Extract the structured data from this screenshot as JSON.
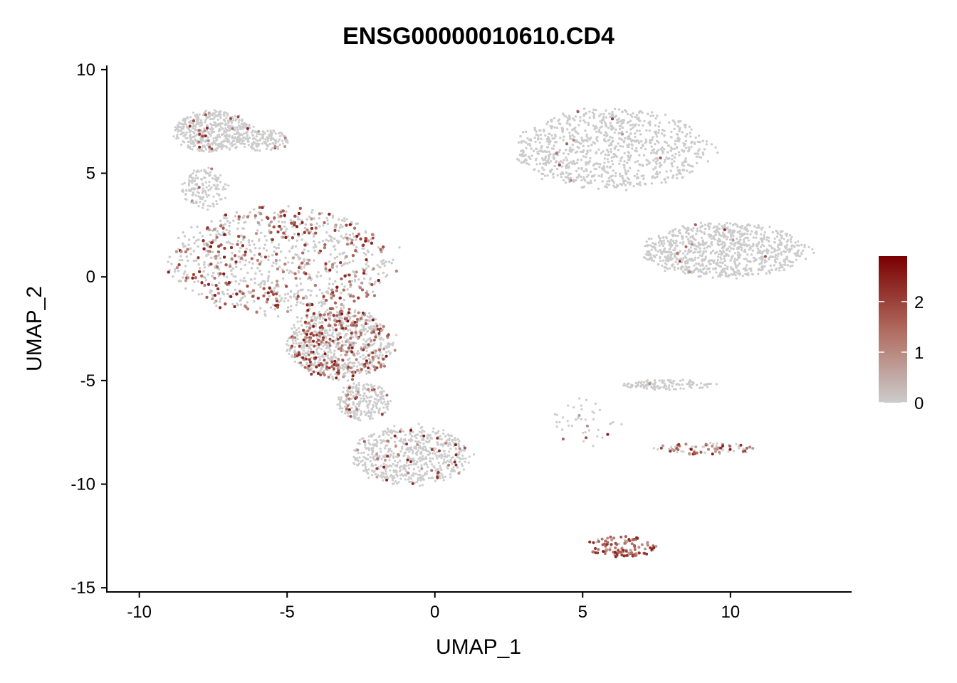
{
  "chart_data": {
    "type": "scatter",
    "title": "ENSG00000010610.CD4",
    "xlabel": "UMAP_1",
    "ylabel": "UMAP_2",
    "xlim": [
      -11.1,
      14.1
    ],
    "ylim": [
      -15.2,
      10.2
    ],
    "x_ticks": [
      -10,
      -5,
      0,
      5,
      10
    ],
    "y_ticks": [
      10,
      5,
      0,
      -5,
      -10,
      -15
    ],
    "x_tick_labels": [
      "-10",
      "-5",
      "0",
      "5",
      "10"
    ],
    "y_tick_labels": [
      "10",
      "5",
      "0",
      "-5",
      "-10",
      "-15"
    ],
    "grid": false,
    "colorbar": {
      "min": 0,
      "max": 2.9,
      "ticks": [
        0,
        1,
        2
      ],
      "tick_labels": [
        "0",
        "1",
        "2"
      ],
      "low_color": "#cccccc",
      "high_color": "#7a0000",
      "placement": "right"
    },
    "clusters": [
      {
        "name": "left-top-lobe",
        "cx": -7.5,
        "cy": 7.0,
        "rx": 1.3,
        "ry": 1.0,
        "n": 500,
        "expr_frac": 0.03
      },
      {
        "name": "left-top-tail",
        "cx": -5.8,
        "cy": 6.6,
        "rx": 0.9,
        "ry": 0.5,
        "n": 140,
        "expr_frac": 0.03
      },
      {
        "name": "left-neck",
        "cx": -7.8,
        "cy": 4.3,
        "rx": 0.8,
        "ry": 1.0,
        "n": 160,
        "expr_frac": 0.02
      },
      {
        "name": "left-main-body",
        "cx": -5.2,
        "cy": 0.8,
        "rx": 3.8,
        "ry": 2.6,
        "n": 3000,
        "expr_frac": 0.28
      },
      {
        "name": "left-lower-body",
        "cx": -3.2,
        "cy": -3.2,
        "rx": 1.8,
        "ry": 1.7,
        "n": 900,
        "expr_frac": 0.26
      },
      {
        "name": "left-bridge",
        "cx": -2.4,
        "cy": -6.0,
        "rx": 0.9,
        "ry": 0.9,
        "n": 250,
        "expr_frac": 0.08
      },
      {
        "name": "left-bottom-lobe",
        "cx": -0.8,
        "cy": -8.6,
        "rx": 2.0,
        "ry": 1.4,
        "n": 650,
        "expr_frac": 0.05
      },
      {
        "name": "right-top-lobe",
        "cx": 6.0,
        "cy": 6.2,
        "rx": 3.3,
        "ry": 1.9,
        "n": 1800,
        "expr_frac": 0.01
      },
      {
        "name": "right-lower-lobe",
        "cx": 9.8,
        "cy": 1.3,
        "rx": 2.8,
        "ry": 1.3,
        "n": 1300,
        "expr_frac": 0.01
      },
      {
        "name": "streak-upper",
        "cx": 7.9,
        "cy": -5.2,
        "rx": 1.6,
        "ry": 0.25,
        "n": 130,
        "expr_frac": 0.01
      },
      {
        "name": "streak-lower",
        "cx": 9.2,
        "cy": -8.3,
        "rx": 1.7,
        "ry": 0.3,
        "n": 90,
        "expr_frac": 0.55
      },
      {
        "name": "bottom-arc",
        "cx": 6.3,
        "cy": -13.0,
        "rx": 1.2,
        "ry": 0.5,
        "n": 110,
        "expr_frac": 0.85
      },
      {
        "name": "sparse-middle",
        "cx": 5.2,
        "cy": -7.0,
        "rx": 1.3,
        "ry": 1.2,
        "n": 45,
        "expr_frac": 0.2
      }
    ]
  }
}
